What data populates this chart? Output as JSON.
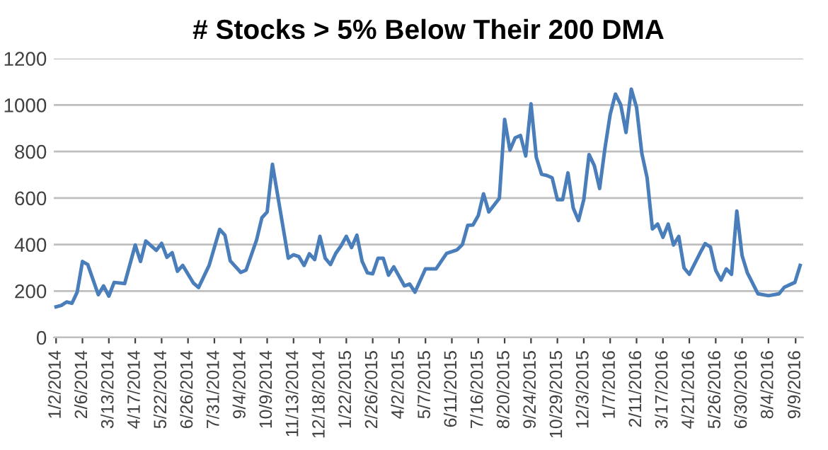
{
  "chart_data": {
    "type": "line",
    "title": "# Stocks > 5% Below Their 200 DMA",
    "x": [
      "2014-01-02",
      "2014-01-09",
      "2014-01-16",
      "2014-01-23",
      "2014-01-30",
      "2014-02-06",
      "2014-02-13",
      "2014-02-27",
      "2014-03-06",
      "2014-03-13",
      "2014-03-20",
      "2014-04-03",
      "2014-04-17",
      "2014-04-24",
      "2014-05-01",
      "2014-05-15",
      "2014-05-22",
      "2014-05-29",
      "2014-06-05",
      "2014-06-12",
      "2014-06-19",
      "2014-07-03",
      "2014-07-10",
      "2014-07-24",
      "2014-08-07",
      "2014-08-14",
      "2014-08-21",
      "2014-09-04",
      "2014-09-11",
      "2014-09-25",
      "2014-10-02",
      "2014-10-09",
      "2014-10-16",
      "2014-11-06",
      "2014-11-13",
      "2014-11-20",
      "2014-11-27",
      "2014-12-04",
      "2014-12-11",
      "2014-12-18",
      "2014-12-25",
      "2015-01-01",
      "2015-01-08",
      "2015-01-15",
      "2015-01-22",
      "2015-01-29",
      "2015-02-05",
      "2015-02-12",
      "2015-02-19",
      "2015-02-26",
      "2015-03-05",
      "2015-03-12",
      "2015-03-19",
      "2015-03-26",
      "2015-04-09",
      "2015-04-16",
      "2015-04-23",
      "2015-05-07",
      "2015-05-21",
      "2015-06-04",
      "2015-06-18",
      "2015-06-25",
      "2015-07-02",
      "2015-07-09",
      "2015-07-16",
      "2015-07-23",
      "2015-07-30",
      "2015-08-13",
      "2015-08-20",
      "2015-08-27",
      "2015-09-03",
      "2015-09-10",
      "2015-09-17",
      "2015-09-24",
      "2015-10-01",
      "2015-10-08",
      "2015-10-15",
      "2015-10-22",
      "2015-10-29",
      "2015-11-05",
      "2015-11-12",
      "2015-11-19",
      "2015-11-26",
      "2015-12-03",
      "2015-12-10",
      "2015-12-17",
      "2015-12-24",
      "2015-12-31",
      "2016-01-07",
      "2016-01-14",
      "2016-01-21",
      "2016-01-28",
      "2016-02-04",
      "2016-02-11",
      "2016-02-18",
      "2016-02-25",
      "2016-03-03",
      "2016-03-10",
      "2016-03-17",
      "2016-03-24",
      "2016-03-31",
      "2016-04-07",
      "2016-04-14",
      "2016-04-21",
      "2016-05-05",
      "2016-05-12",
      "2016-05-19",
      "2016-05-26",
      "2016-06-02",
      "2016-06-09",
      "2016-06-16",
      "2016-06-23",
      "2016-06-30",
      "2016-07-07",
      "2016-07-21",
      "2016-08-04",
      "2016-08-18",
      "2016-08-25",
      "2016-09-08",
      "2016-09-15"
    ],
    "series": [
      {
        "color": "#4a7ebb",
        "values": [
          132,
          138,
          153,
          147,
          195,
          327,
          314,
          184,
          222,
          178,
          237,
          232,
          398,
          327,
          415,
          375,
          405,
          345,
          365,
          285,
          310,
          235,
          215,
          310,
          465,
          440,
          330,
          280,
          290,
          420,
          515,
          540,
          745,
          341,
          356,
          348,
          310,
          360,
          335,
          435,
          341,
          314,
          362,
          394,
          435,
          387,
          440,
          327,
          278,
          274,
          341,
          341,
          268,
          304,
          222,
          230,
          195,
          295,
          295,
          362,
          377,
          400,
          482,
          484,
          524,
          618,
          540,
          599,
          938,
          806,
          859,
          869,
          781,
          1005,
          775,
          702,
          697,
          687,
          593,
          593,
          708,
          557,
          503,
          593,
          787,
          739,
          641,
          812,
          959,
          1047,
          1001,
          882,
          1068,
          990,
          792,
          687,
          467,
          488,
          431,
          488,
          398,
          435,
          299,
          272,
          362,
          404,
          389,
          289,
          247,
          295,
          272,
          544,
          352,
          278,
          188,
          180,
          188,
          216,
          237,
          310
        ]
      }
    ],
    "xlim": [
      "2013-12-30",
      "2016-09-19"
    ],
    "xticks": [
      {
        "value": "2014-01-02",
        "label": "1/2/2014"
      },
      {
        "value": "2014-02-06",
        "label": "2/6/2014"
      },
      {
        "value": "2014-03-13",
        "label": "3/13/2014"
      },
      {
        "value": "2014-04-17",
        "label": "4/17/2014"
      },
      {
        "value": "2014-05-22",
        "label": "5/22/2014"
      },
      {
        "value": "2014-06-26",
        "label": "6/26/2014"
      },
      {
        "value": "2014-07-31",
        "label": "7/31/2014"
      },
      {
        "value": "2014-09-04",
        "label": "9/4/2014"
      },
      {
        "value": "2014-10-09",
        "label": "10/9/2014"
      },
      {
        "value": "2014-11-13",
        "label": "11/13/2014"
      },
      {
        "value": "2014-12-18",
        "label": "12/18/2014"
      },
      {
        "value": "2015-01-22",
        "label": "1/22/2015"
      },
      {
        "value": "2015-02-26",
        "label": "2/26/2015"
      },
      {
        "value": "2015-04-02",
        "label": "4/2/2015"
      },
      {
        "value": "2015-05-07",
        "label": "5/7/2015"
      },
      {
        "value": "2015-06-11",
        "label": "6/11/2015"
      },
      {
        "value": "2015-07-16",
        "label": "7/16/2015"
      },
      {
        "value": "2015-08-20",
        "label": "8/20/2015"
      },
      {
        "value": "2015-09-24",
        "label": "9/24/2015"
      },
      {
        "value": "2015-10-29",
        "label": "10/29/2015"
      },
      {
        "value": "2015-12-03",
        "label": "12/3/2015"
      },
      {
        "value": "2016-01-07",
        "label": "1/7/2016"
      },
      {
        "value": "2016-02-11",
        "label": "2/11/2016"
      },
      {
        "value": "2016-03-17",
        "label": "3/17/2016"
      },
      {
        "value": "2016-04-21",
        "label": "4/21/2016"
      },
      {
        "value": "2016-05-26",
        "label": "5/26/2016"
      },
      {
        "value": "2016-06-30",
        "label": "6/30/2016"
      },
      {
        "value": "2016-08-04",
        "label": "8/4/2016"
      },
      {
        "value": "2016-09-09",
        "label": "9/9/2016"
      }
    ],
    "ylim": [
      0,
      1200
    ],
    "yticks": [
      0,
      200,
      400,
      600,
      800,
      1000,
      1200
    ],
    "grid": "y",
    "marker": "none",
    "line_style": "solid"
  }
}
